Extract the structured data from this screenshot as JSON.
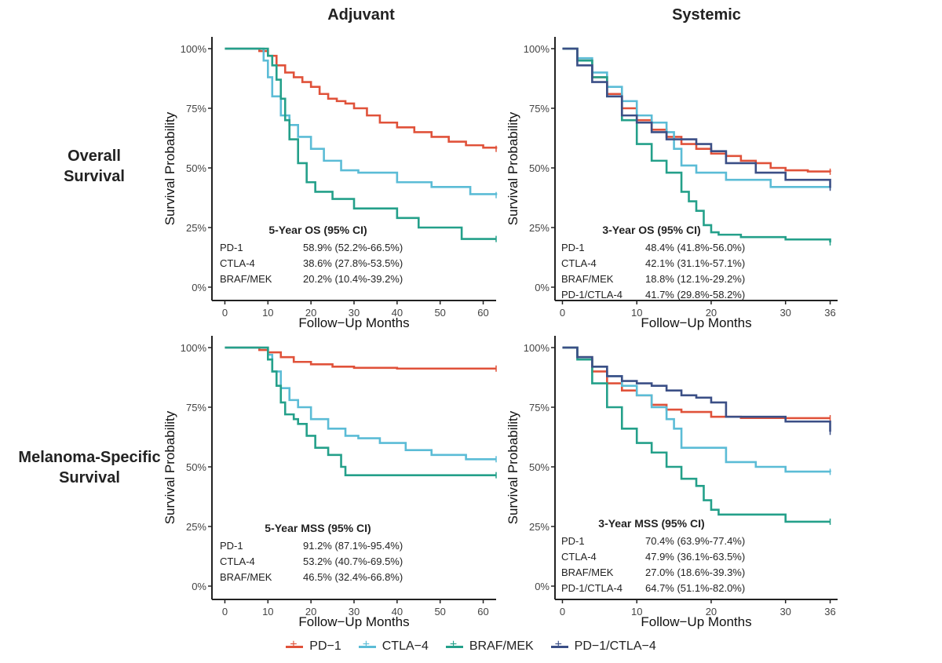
{
  "columns": {
    "left": "Adjuvant",
    "right": "Systemic"
  },
  "rows": {
    "top": [
      "Overall",
      "Survival"
    ],
    "bottom": [
      "Melanoma-Specific",
      "Survival"
    ]
  },
  "legend": [
    {
      "label": "PD−1",
      "color": "#e0523a"
    },
    {
      "label": "CTLA−4",
      "color": "#5bbcd6"
    },
    {
      "label": "BRAF/MEK",
      "color": "#24a08a"
    },
    {
      "label": "PD−1/CTLA−4",
      "color": "#3b4f86"
    }
  ],
  "chart_data": [
    {
      "id": "adj-os",
      "type": "line",
      "xlabel": "Follow−Up Months",
      "ylabel": "Survival Probability",
      "xlim": [
        -3,
        63
      ],
      "xticks": [
        0,
        10,
        20,
        30,
        40,
        50,
        60
      ],
      "yticks": [
        "0%",
        "25%",
        "50%",
        "75%",
        "100%"
      ],
      "table_title": "5-Year OS (95% CI)",
      "table": [
        [
          "PD-1",
          "58.9% (52.2%-66.5%)"
        ],
        [
          "CTLA-4",
          "38.6% (27.8%-53.5%)"
        ],
        [
          "BRAF/MEK",
          "20.2% (10.4%-39.2%)"
        ]
      ],
      "series": [
        {
          "name": "PD-1",
          "color": "#e0523a",
          "x": [
            0,
            6,
            8,
            10,
            12,
            14,
            16,
            18,
            20,
            22,
            24,
            26,
            28,
            30,
            33,
            36,
            40,
            44,
            48,
            52,
            56,
            60,
            63
          ],
          "y": [
            100,
            100,
            99,
            97,
            93,
            90,
            88,
            86,
            84,
            81,
            79,
            78,
            77,
            75,
            72,
            69,
            67,
            65,
            63,
            61,
            59.5,
            58.5,
            58
          ]
        },
        {
          "name": "CTLA-4",
          "color": "#5bbcd6",
          "x": [
            0,
            7,
            9,
            10,
            11,
            13,
            15,
            17,
            20,
            23,
            27,
            31,
            40,
            48,
            57,
            63
          ],
          "y": [
            100,
            100,
            95,
            88,
            80,
            72,
            68,
            63,
            58,
            53,
            49,
            48,
            44,
            42,
            39,
            38.6
          ]
        },
        {
          "name": "BRAF/MEK",
          "color": "#24a08a",
          "x": [
            0,
            7,
            10,
            11,
            12,
            13,
            14,
            15,
            17,
            19,
            21,
            25,
            30,
            40,
            45,
            55,
            63
          ],
          "y": [
            100,
            100,
            97,
            93,
            87,
            79,
            70,
            62,
            52,
            44,
            40,
            37,
            33,
            29,
            25,
            20.2,
            20.2
          ]
        }
      ]
    },
    {
      "id": "sys-os",
      "type": "line",
      "xlabel": "Follow−Up Months",
      "ylabel": "Survival Probability",
      "xlim": [
        -1,
        37
      ],
      "xticks": [
        0,
        10,
        20,
        30,
        36
      ],
      "yticks": [
        "0%",
        "25%",
        "50%",
        "75%",
        "100%"
      ],
      "table_title": "3-Year OS (95% CI)",
      "table": [
        [
          "PD-1",
          "48.4% (41.8%-56.0%)"
        ],
        [
          "CTLA-4",
          "42.1% (31.1%-57.1%)"
        ],
        [
          "BRAF/MEK",
          "18.8% (12.1%-29.2%)"
        ],
        [
          "PD-1/CTLA-4",
          "41.7% (29.8%-58.2%)"
        ]
      ],
      "series": [
        {
          "name": "PD-1",
          "color": "#e0523a",
          "x": [
            0,
            2,
            4,
            6,
            8,
            10,
            12,
            14,
            16,
            18,
            20,
            22,
            24,
            26,
            28,
            30,
            33,
            36
          ],
          "y": [
            100,
            95,
            88,
            81,
            75,
            70,
            66,
            63,
            60,
            58,
            56,
            55,
            53,
            52,
            50,
            49,
            48.5,
            48.4
          ]
        },
        {
          "name": "CTLA-4",
          "color": "#5bbcd6",
          "x": [
            0,
            2,
            4,
            6,
            8,
            10,
            12,
            14,
            15,
            16,
            18,
            22,
            28,
            36
          ],
          "y": [
            100,
            96,
            90,
            84,
            78,
            72,
            69,
            65,
            58,
            51,
            48,
            45,
            42,
            42.1
          ]
        },
        {
          "name": "BRAF/MEK",
          "color": "#24a08a",
          "x": [
            0,
            2,
            4,
            6,
            8,
            10,
            12,
            14,
            16,
            17,
            18,
            19,
            20,
            21,
            24,
            30,
            36
          ],
          "y": [
            100,
            95,
            88,
            80,
            70,
            60,
            53,
            48,
            40,
            36,
            32,
            26,
            23,
            22,
            21,
            20,
            18.8
          ]
        },
        {
          "name": "PD-1/CTLA-4",
          "color": "#3b4f86",
          "x": [
            0,
            2,
            4,
            6,
            8,
            10,
            12,
            14,
            16,
            18,
            20,
            22,
            26,
            30,
            36
          ],
          "y": [
            100,
            93,
            86,
            80,
            72,
            69,
            65,
            62,
            62,
            60,
            57,
            52,
            48,
            45,
            41.7
          ]
        }
      ]
    },
    {
      "id": "adj-mss",
      "type": "line",
      "xlabel": "Follow−Up Months",
      "ylabel": "Survival Probability",
      "xlim": [
        -3,
        63
      ],
      "xticks": [
        0,
        10,
        20,
        30,
        40,
        50,
        60
      ],
      "yticks": [
        "0%",
        "25%",
        "50%",
        "75%",
        "100%"
      ],
      "table_title": "5-Year MSS (95% CI)",
      "table": [
        [
          "PD-1",
          "91.2% (87.1%-95.4%)"
        ],
        [
          "CTLA-4",
          "53.2% (40.7%-69.5%)"
        ],
        [
          "BRAF/MEK",
          "46.5% (32.4%-66.8%)"
        ]
      ],
      "series": [
        {
          "name": "PD-1",
          "color": "#e0523a",
          "x": [
            0,
            6,
            8,
            10,
            13,
            16,
            20,
            25,
            30,
            40,
            50,
            63
          ],
          "y": [
            100,
            100,
            99,
            98,
            96,
            94,
            93,
            92,
            91.5,
            91.2,
            91.2,
            91.2
          ]
        },
        {
          "name": "CTLA-4",
          "color": "#5bbcd6",
          "x": [
            0,
            7,
            10,
            11,
            13,
            15,
            17,
            20,
            24,
            28,
            31,
            36,
            42,
            48,
            56,
            63
          ],
          "y": [
            100,
            100,
            97,
            90,
            83,
            78,
            75,
            70,
            66,
            63,
            62,
            60,
            57,
            55,
            53.2,
            53.2
          ]
        },
        {
          "name": "BRAF/MEK",
          "color": "#24a08a",
          "x": [
            0,
            7,
            10,
            11,
            12,
            13,
            14,
            16,
            17,
            19,
            21,
            24,
            27,
            28,
            40,
            63
          ],
          "y": [
            100,
            100,
            95,
            90,
            84,
            77,
            72,
            70,
            68,
            63,
            58,
            55,
            50,
            46.5,
            46.5,
            46.5
          ]
        }
      ]
    },
    {
      "id": "sys-mss",
      "type": "line",
      "xlabel": "Follow−Up Months",
      "ylabel": "Survival Probability",
      "xlim": [
        -1,
        37
      ],
      "xticks": [
        0,
        10,
        20,
        30,
        36
      ],
      "yticks": [
        "0%",
        "25%",
        "50%",
        "75%",
        "100%"
      ],
      "table_title": "3-Year MSS (95% CI)",
      "table": [
        [
          "PD-1",
          "70.4% (63.9%-77.4%)"
        ],
        [
          "CTLA-4",
          "47.9% (36.1%-63.5%)"
        ],
        [
          "BRAF/MEK",
          "27.0% (18.6%-39.3%)"
        ],
        [
          "PD-1/CTLA-4",
          "64.7% (51.1%-82.0%)"
        ]
      ],
      "series": [
        {
          "name": "PD-1",
          "color": "#e0523a",
          "x": [
            0,
            2,
            4,
            6,
            8,
            10,
            12,
            14,
            16,
            20,
            24,
            30,
            36
          ],
          "y": [
            100,
            96,
            90,
            85,
            82,
            80,
            76,
            74,
            73,
            71,
            70.5,
            70.4,
            70.4
          ]
        },
        {
          "name": "CTLA-4",
          "color": "#5bbcd6",
          "x": [
            0,
            2,
            4,
            6,
            8,
            10,
            12,
            14,
            15,
            16,
            18,
            22,
            26,
            30,
            36
          ],
          "y": [
            100,
            96,
            92,
            88,
            84,
            80,
            75,
            70,
            66,
            58,
            58,
            52,
            50,
            48,
            47.9
          ]
        },
        {
          "name": "BRAF/MEK",
          "color": "#24a08a",
          "x": [
            0,
            2,
            4,
            6,
            8,
            10,
            12,
            14,
            16,
            18,
            19,
            20,
            21,
            24,
            30,
            36
          ],
          "y": [
            100,
            95,
            85,
            75,
            66,
            60,
            56,
            50,
            45,
            42,
            36,
            32,
            30,
            30,
            27,
            27
          ]
        },
        {
          "name": "PD-1/CTLA-4",
          "color": "#3b4f86",
          "x": [
            0,
            2,
            4,
            6,
            8,
            10,
            12,
            14,
            16,
            18,
            20,
            22,
            26,
            30,
            36
          ],
          "y": [
            100,
            96,
            92,
            88,
            86,
            85,
            84,
            82,
            80,
            79,
            77,
            71,
            71,
            69,
            64.7
          ]
        }
      ]
    }
  ]
}
